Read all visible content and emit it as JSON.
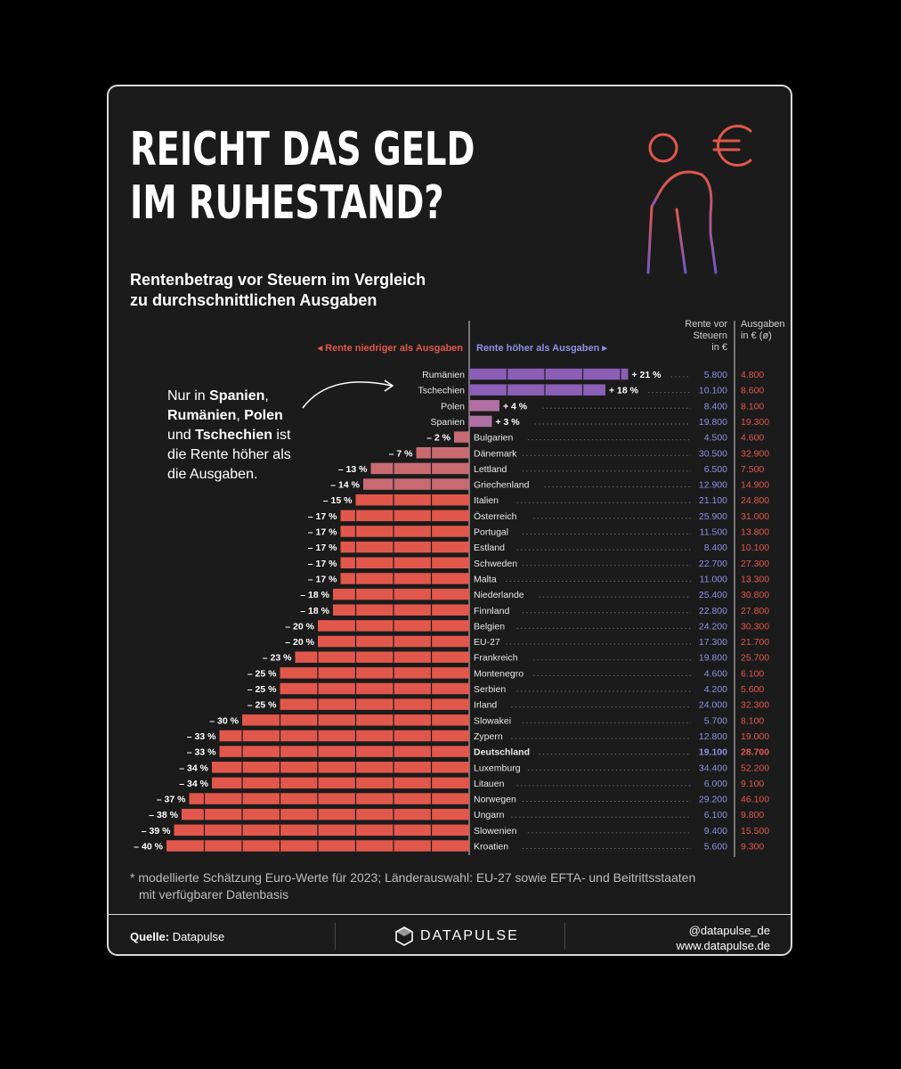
{
  "title_line1": "REICHT DAS GELD",
  "title_line2": "IM RUHESTAND?",
  "subtitle_line1": "Rentenbetrag vor Steuern im Vergleich",
  "subtitle_line2": "zu durchschnittlichen Ausgaben",
  "legend_left": "◂ Rente niedriger als Ausgaben",
  "legend_right": "Rente höher als Ausgaben ▸",
  "col_header_rente": [
    "Rente vor",
    "Steuern",
    "in €"
  ],
  "col_header_ausgaben": [
    "Ausgaben",
    "in € (ø)"
  ],
  "annotation": {
    "l1a": "Nur in ",
    "l1b": "Spanien",
    "l1c": ",",
    "l2a": "Rumänien",
    "l2b": ", ",
    "l2c": "Polen",
    "l3a": "und ",
    "l3b": "Tschechien",
    "l3c": " ist",
    "l4": "die Rente höher als",
    "l5": "die Ausgaben."
  },
  "footnote_line1": "* modellierte Schätzung Euro-Werte für 2023; Länderauswahl: EU-27 sowie EFTA- und Beitrittsstaaten",
  "footnote_line2": "mit verfügbarer Datenbasis",
  "source_label": "Quelle:",
  "source_value": " Datapulse",
  "brand": "DATAPULSE",
  "handle": "@datapulse_de",
  "website": "www.datapulse.de",
  "colors": {
    "positive": "#8a5fb5",
    "positive_small": "#b06fa2",
    "negative": "#e2574c",
    "negative_light": "#c86a72",
    "rente_text": "#8f8fe6",
    "ausgaben_text": "#e2574c",
    "legend_left": "#e2574c",
    "legend_right": "#8f8fe6"
  },
  "chart_data": {
    "type": "bar",
    "unit": "%",
    "highlight": "Deutschland",
    "categories": [
      "Rumänien",
      "Tschechien",
      "Polen",
      "Spanien",
      "Bulgarien",
      "Dänemark",
      "Lettland",
      "Griechenland",
      "Italien",
      "Österreich",
      "Portugal",
      "Estland",
      "Schweden",
      "Malta",
      "Niederlande",
      "Finnland",
      "Belgien",
      "EU-27",
      "Frankreich",
      "Montenegro",
      "Serbien",
      "Irland",
      "Slowakei",
      "Zypern",
      "Deutschland",
      "Luxemburg",
      "Litauen",
      "Norwegen",
      "Ungarn",
      "Slowenien",
      "Kroatien"
    ],
    "values": [
      21,
      18,
      4,
      3,
      -2,
      -7,
      -13,
      -14,
      -15,
      -17,
      -17,
      -17,
      -17,
      -17,
      -18,
      -18,
      -20,
      -20,
      -23,
      -25,
      -25,
      -25,
      -30,
      -33,
      -33,
      -34,
      -34,
      -37,
      -38,
      -39,
      -40
    ],
    "value_labels": [
      "+ 21 %",
      "+ 18 %",
      "+ 4 %",
      "+ 3 %",
      "– 2 %",
      "– 7 %",
      "– 13 %",
      "– 14 %",
      "– 15 %",
      "– 17 %",
      "– 17 %",
      "– 17 %",
      "– 17 %",
      "– 17 %",
      "– 18 %",
      "– 18 %",
      "– 20 %",
      "– 20 %",
      "– 23 %",
      "– 25 %",
      "– 25 %",
      "– 25 %",
      "– 30 %",
      "– 33 %",
      "– 33 %",
      "– 34 %",
      "– 34 %",
      "– 37 %",
      "– 38 %",
      "– 39 %",
      "– 40 %"
    ],
    "rente": [
      "5.800",
      "10.100",
      "8.400",
      "19.800",
      "4.500",
      "30.500",
      "6.500",
      "12.900",
      "21.100",
      "25.900",
      "11.500",
      "8.400",
      "22.700",
      "11.000",
      "25.400",
      "22.800",
      "24.200",
      "17.300",
      "19.800",
      "4.600",
      "4.200",
      "24.000",
      "5.700",
      "12.800",
      "19.100",
      "34.400",
      "6.000",
      "29.200",
      "6.100",
      "9.400",
      "5.600"
    ],
    "ausgaben": [
      "4.800",
      "8.600",
      "8.100",
      "19.300",
      "4.600",
      "32.900",
      "7.500",
      "14.900",
      "24.800",
      "31.000",
      "13.800",
      "10.100",
      "27.300",
      "13.300",
      "30.800",
      "27.800",
      "30.300",
      "21.700",
      "25.700",
      "6.100",
      "5.600",
      "32.300",
      "8.100",
      "19.000",
      "28.700",
      "52.200",
      "9.100",
      "46.100",
      "9.800",
      "15.500",
      "9.300"
    ]
  }
}
